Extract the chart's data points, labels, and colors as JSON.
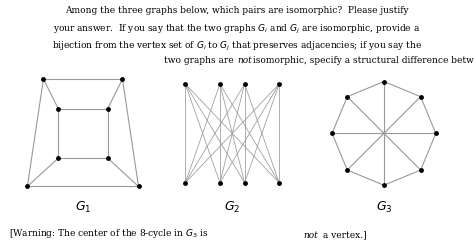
{
  "node_color": "#000000",
  "edge_color": "#999999",
  "bg_color": "#ffffff",
  "line1": "Among the three graphs below, which pairs are isomorphic?  Please justify",
  "line2": "your answer.  If you say that the two graphs ",
  "line2b": " and ",
  "line2c": " are isomorphic, provide a",
  "line3": "bijection from the vertex set of ",
  "line3b": " to ",
  "line3c": " that preserves adjacencies; if you say the",
  "line4a": "two graphs are ",
  "line4b": "not",
  "line4c": " isomorphic, specify a structural difference between the graphs.",
  "warn_a": "[Warning: The center of the 8-cycle in ",
  "warn_b": " is ",
  "warn_c": "not",
  "warn_d": " a vertex.]",
  "G1_label": "G",
  "G2_label": "G",
  "G3_label": "G"
}
